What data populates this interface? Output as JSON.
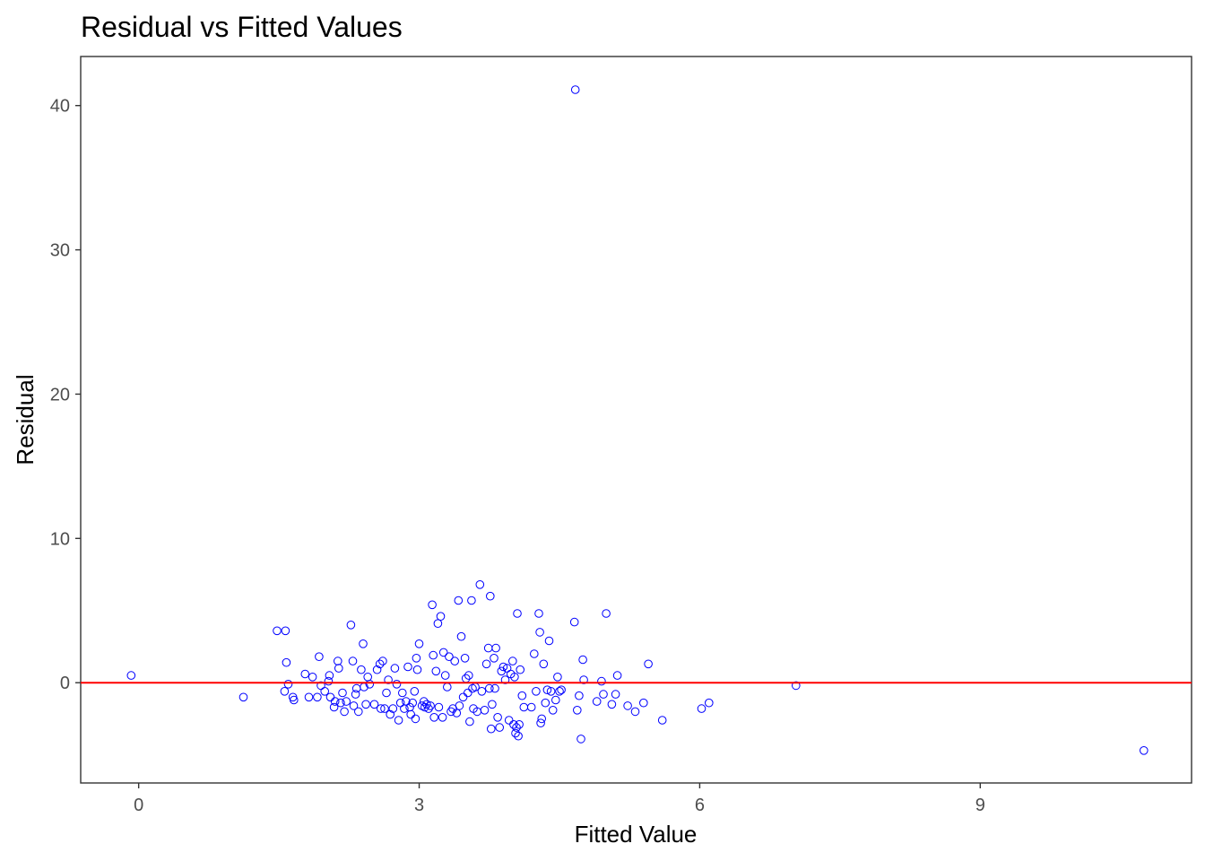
{
  "chart_data": {
    "type": "scatter",
    "title": "Residual vs Fitted Values",
    "xlabel": "Fitted Value",
    "ylabel": "Residual",
    "xlim": [
      -0.62,
      11.26
    ],
    "ylim": [
      -6.95,
      43.4
    ],
    "x_ticks": [
      0,
      3,
      6,
      9
    ],
    "x_tick_labels": [
      "0",
      "3",
      "6",
      "9"
    ],
    "y_ticks": [
      0,
      10,
      20,
      30,
      40
    ],
    "y_tick_labels": [
      "0",
      "10",
      "20",
      "30",
      "40"
    ],
    "grid": false,
    "point_color": "#0000ff",
    "reference_line": {
      "y": 0,
      "color": "#ff0000"
    },
    "points": [
      {
        "x": -0.08,
        "y": 0.5
      },
      {
        "x": 1.12,
        "y": -1.0
      },
      {
        "x": 1.48,
        "y": 3.6
      },
      {
        "x": 1.57,
        "y": 3.6
      },
      {
        "x": 1.58,
        "y": 1.4
      },
      {
        "x": 1.56,
        "y": -0.6
      },
      {
        "x": 1.6,
        "y": -0.1
      },
      {
        "x": 1.65,
        "y": -1.0
      },
      {
        "x": 1.66,
        "y": -1.2
      },
      {
        "x": 1.78,
        "y": 0.6
      },
      {
        "x": 1.82,
        "y": -1.0
      },
      {
        "x": 1.86,
        "y": 0.4
      },
      {
        "x": 1.91,
        "y": -1.0
      },
      {
        "x": 1.93,
        "y": 1.8
      },
      {
        "x": 1.95,
        "y": -0.2
      },
      {
        "x": 1.99,
        "y": -0.6
      },
      {
        "x": 2.03,
        "y": 0.1
      },
      {
        "x": 2.04,
        "y": 0.5
      },
      {
        "x": 2.05,
        "y": -1.0
      },
      {
        "x": 2.09,
        "y": -1.7
      },
      {
        "x": 2.1,
        "y": -1.3
      },
      {
        "x": 2.13,
        "y": 1.5
      },
      {
        "x": 2.14,
        "y": 1.0
      },
      {
        "x": 2.16,
        "y": -1.4
      },
      {
        "x": 2.18,
        "y": -0.7
      },
      {
        "x": 2.2,
        "y": -2.0
      },
      {
        "x": 2.22,
        "y": -1.3
      },
      {
        "x": 2.27,
        "y": 4.0
      },
      {
        "x": 2.29,
        "y": 1.5
      },
      {
        "x": 2.3,
        "y": -1.6
      },
      {
        "x": 2.32,
        "y": -0.8
      },
      {
        "x": 2.33,
        "y": -0.4
      },
      {
        "x": 2.35,
        "y": -2.0
      },
      {
        "x": 2.38,
        "y": 0.9
      },
      {
        "x": 2.4,
        "y": 2.7
      },
      {
        "x": 2.41,
        "y": -0.3
      },
      {
        "x": 2.43,
        "y": -1.5
      },
      {
        "x": 2.45,
        "y": 0.4
      },
      {
        "x": 2.47,
        "y": -0.1
      },
      {
        "x": 2.52,
        "y": -1.5
      },
      {
        "x": 2.55,
        "y": 0.9
      },
      {
        "x": 2.58,
        "y": 1.3
      },
      {
        "x": 2.59,
        "y": -1.8
      },
      {
        "x": 2.61,
        "y": 1.5
      },
      {
        "x": 2.63,
        "y": -1.8
      },
      {
        "x": 2.65,
        "y": -0.7
      },
      {
        "x": 2.67,
        "y": 0.2
      },
      {
        "x": 2.69,
        "y": -2.2
      },
      {
        "x": 2.72,
        "y": -1.8
      },
      {
        "x": 2.74,
        "y": 1.0
      },
      {
        "x": 2.76,
        "y": -0.1
      },
      {
        "x": 2.78,
        "y": -2.6
      },
      {
        "x": 2.8,
        "y": -1.4
      },
      {
        "x": 2.82,
        "y": -0.7
      },
      {
        "x": 2.84,
        "y": -1.8
      },
      {
        "x": 2.86,
        "y": -1.3
      },
      {
        "x": 2.88,
        "y": 1.1
      },
      {
        "x": 2.9,
        "y": -1.7
      },
      {
        "x": 2.91,
        "y": -2.2
      },
      {
        "x": 2.93,
        "y": -1.4
      },
      {
        "x": 2.95,
        "y": -0.6
      },
      {
        "x": 2.96,
        "y": -2.5
      },
      {
        "x": 2.97,
        "y": 1.7
      },
      {
        "x": 2.98,
        "y": 0.9
      },
      {
        "x": 3.0,
        "y": 2.7
      },
      {
        "x": 3.03,
        "y": -1.6
      },
      {
        "x": 3.05,
        "y": -1.3
      },
      {
        "x": 3.06,
        "y": -1.7
      },
      {
        "x": 3.08,
        "y": -1.5
      },
      {
        "x": 3.1,
        "y": -1.8
      },
      {
        "x": 3.12,
        "y": -1.6
      },
      {
        "x": 3.14,
        "y": 5.4
      },
      {
        "x": 3.15,
        "y": 1.9
      },
      {
        "x": 3.16,
        "y": -2.4
      },
      {
        "x": 3.18,
        "y": 0.8
      },
      {
        "x": 3.2,
        "y": 4.1
      },
      {
        "x": 3.21,
        "y": -1.7
      },
      {
        "x": 3.23,
        "y": 4.6
      },
      {
        "x": 3.25,
        "y": -2.4
      },
      {
        "x": 3.26,
        "y": 2.1
      },
      {
        "x": 3.28,
        "y": 0.5
      },
      {
        "x": 3.3,
        "y": -0.3
      },
      {
        "x": 3.32,
        "y": 1.8
      },
      {
        "x": 3.34,
        "y": -2.0
      },
      {
        "x": 3.36,
        "y": -1.8
      },
      {
        "x": 3.38,
        "y": 1.5
      },
      {
        "x": 3.4,
        "y": -2.1
      },
      {
        "x": 3.42,
        "y": 5.7
      },
      {
        "x": 3.43,
        "y": -1.6
      },
      {
        "x": 3.45,
        "y": 3.2
      },
      {
        "x": 3.47,
        "y": -1.0
      },
      {
        "x": 3.49,
        "y": 1.7
      },
      {
        "x": 3.5,
        "y": 0.3
      },
      {
        "x": 3.52,
        "y": -0.7
      },
      {
        "x": 3.53,
        "y": 0.5
      },
      {
        "x": 3.54,
        "y": -2.7
      },
      {
        "x": 3.56,
        "y": 5.7
      },
      {
        "x": 3.57,
        "y": -0.4
      },
      {
        "x": 3.58,
        "y": -1.8
      },
      {
        "x": 3.6,
        "y": -0.3
      },
      {
        "x": 3.62,
        "y": -2.0
      },
      {
        "x": 3.65,
        "y": 6.8
      },
      {
        "x": 3.67,
        "y": -0.6
      },
      {
        "x": 3.7,
        "y": -1.9
      },
      {
        "x": 3.72,
        "y": 1.3
      },
      {
        "x": 3.74,
        "y": 2.4
      },
      {
        "x": 3.75,
        "y": -0.4
      },
      {
        "x": 3.76,
        "y": 6.0
      },
      {
        "x": 3.77,
        "y": -3.2
      },
      {
        "x": 3.78,
        "y": -1.5
      },
      {
        "x": 3.8,
        "y": 1.7
      },
      {
        "x": 3.81,
        "y": -0.4
      },
      {
        "x": 3.82,
        "y": 2.4
      },
      {
        "x": 3.84,
        "y": -2.4
      },
      {
        "x": 3.86,
        "y": -3.1
      },
      {
        "x": 3.88,
        "y": 0.8
      },
      {
        "x": 3.9,
        "y": 1.1
      },
      {
        "x": 3.92,
        "y": 0.2
      },
      {
        "x": 3.94,
        "y": 1.0
      },
      {
        "x": 3.96,
        "y": -2.6
      },
      {
        "x": 3.98,
        "y": 0.6
      },
      {
        "x": 4.0,
        "y": 1.5
      },
      {
        "x": 4.01,
        "y": -2.9
      },
      {
        "x": 4.02,
        "y": 0.4
      },
      {
        "x": 4.03,
        "y": -3.5
      },
      {
        "x": 4.04,
        "y": -3.1
      },
      {
        "x": 4.05,
        "y": 4.8
      },
      {
        "x": 4.06,
        "y": -3.7
      },
      {
        "x": 4.07,
        "y": -2.9
      },
      {
        "x": 4.08,
        "y": 0.9
      },
      {
        "x": 4.1,
        "y": -0.9
      },
      {
        "x": 4.12,
        "y": -1.7
      },
      {
        "x": 4.2,
        "y": -1.7
      },
      {
        "x": 4.23,
        "y": 2.0
      },
      {
        "x": 4.25,
        "y": -0.6
      },
      {
        "x": 4.28,
        "y": 4.8
      },
      {
        "x": 4.29,
        "y": 3.5
      },
      {
        "x": 4.3,
        "y": -2.8
      },
      {
        "x": 4.31,
        "y": -2.5
      },
      {
        "x": 4.33,
        "y": 1.3
      },
      {
        "x": 4.35,
        "y": -1.4
      },
      {
        "x": 4.37,
        "y": -0.5
      },
      {
        "x": 4.39,
        "y": 2.9
      },
      {
        "x": 4.41,
        "y": -0.6
      },
      {
        "x": 4.43,
        "y": -1.9
      },
      {
        "x": 4.46,
        "y": -1.2
      },
      {
        "x": 4.48,
        "y": 0.4
      },
      {
        "x": 4.5,
        "y": -0.6
      },
      {
        "x": 4.52,
        "y": -0.5
      },
      {
        "x": 4.66,
        "y": 4.2
      },
      {
        "x": 4.67,
        "y": 41.1
      },
      {
        "x": 4.69,
        "y": -1.9
      },
      {
        "x": 4.71,
        "y": -0.9
      },
      {
        "x": 4.73,
        "y": -3.9
      },
      {
        "x": 4.75,
        "y": 1.6
      },
      {
        "x": 4.76,
        "y": 0.2
      },
      {
        "x": 4.9,
        "y": -1.3
      },
      {
        "x": 4.95,
        "y": 0.1
      },
      {
        "x": 4.97,
        "y": -0.8
      },
      {
        "x": 5.0,
        "y": 4.8
      },
      {
        "x": 5.06,
        "y": -1.5
      },
      {
        "x": 5.1,
        "y": -0.8
      },
      {
        "x": 5.12,
        "y": 0.5
      },
      {
        "x": 5.23,
        "y": -1.6
      },
      {
        "x": 5.31,
        "y": -2.0
      },
      {
        "x": 5.4,
        "y": -1.4
      },
      {
        "x": 5.45,
        "y": 1.3
      },
      {
        "x": 5.6,
        "y": -2.6
      },
      {
        "x": 6.02,
        "y": -1.8
      },
      {
        "x": 6.1,
        "y": -1.4
      },
      {
        "x": 7.03,
        "y": -0.2
      },
      {
        "x": 10.75,
        "y": -4.7
      }
    ]
  }
}
